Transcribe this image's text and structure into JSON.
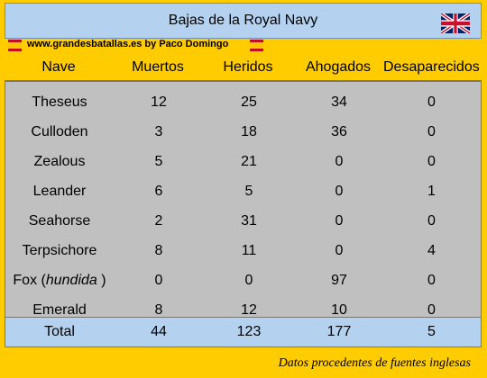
{
  "title": "Bajas de la Royal Navy",
  "site": "www.grandesbatallas.es   by Paco Domingo",
  "columns": [
    "Nave",
    "Muertos",
    "Heridos",
    "Ahogados",
    "Desaparecidos"
  ],
  "rows": [
    {
      "nave": "Theseus",
      "note": "",
      "muertos": "12",
      "heridos": "25",
      "ahogados": "34",
      "desaparecidos": "0"
    },
    {
      "nave": "Culloden",
      "note": "",
      "muertos": "3",
      "heridos": "18",
      "ahogados": "36",
      "desaparecidos": "0"
    },
    {
      "nave": "Zealous",
      "note": "",
      "muertos": "5",
      "heridos": "21",
      "ahogados": "0",
      "desaparecidos": "0"
    },
    {
      "nave": "Leander",
      "note": "",
      "muertos": "6",
      "heridos": "5",
      "ahogados": "0",
      "desaparecidos": "1"
    },
    {
      "nave": "Seahorse",
      "note": "",
      "muertos": "2",
      "heridos": "31",
      "ahogados": "0",
      "desaparecidos": "0"
    },
    {
      "nave": "Terpsichore",
      "note": "",
      "muertos": "8",
      "heridos": "11",
      "ahogados": "0",
      "desaparecidos": "4"
    },
    {
      "nave": "Fox (",
      "note": "hundida",
      "suffix": " )",
      "muertos": "0",
      "heridos": "0",
      "ahogados": "97",
      "desaparecidos": "0"
    },
    {
      "nave": "Emerald",
      "note": "",
      "muertos": "8",
      "heridos": "12",
      "ahogados": "10",
      "desaparecidos": "0"
    }
  ],
  "total": {
    "label": "Total",
    "muertos": "44",
    "heridos": "123",
    "ahogados": "177",
    "desaparecidos": "5"
  },
  "footer": "Datos procedentes de fuentes inglesas",
  "colors": {
    "background": "#ffcc00",
    "header_blue": "#b4d2f0",
    "table_gray": "#c0c0c0"
  }
}
